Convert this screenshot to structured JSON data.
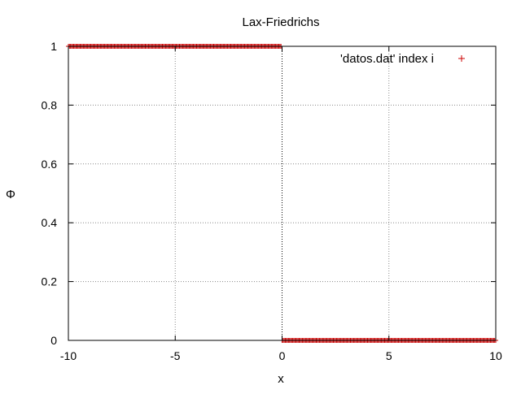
{
  "chart_data": {
    "type": "scatter",
    "title": "Lax-Friedrichs",
    "xlabel": "x",
    "ylabel": "Φ",
    "xlim": [
      -10,
      10
    ],
    "ylim": [
      0,
      1
    ],
    "x_ticks": [
      -10,
      -5,
      0,
      5,
      10
    ],
    "x_tick_labels": [
      "-10",
      "-5",
      "0",
      "5",
      "10"
    ],
    "y_ticks": [
      0,
      0.2,
      0.4,
      0.6,
      0.8,
      1
    ],
    "y_tick_labels": [
      "0",
      "0.2",
      "0.4",
      "0.6",
      "0.8",
      "1"
    ],
    "grid": true,
    "legend_position": "top-right",
    "series": [
      {
        "name": "'datos.dat' index i",
        "marker": "plus",
        "color": "#cc0000",
        "x_range": [
          -10,
          10
        ],
        "x_step": 0.05,
        "step_at": 0,
        "y_left": 1,
        "y_right": 0
      }
    ]
  }
}
